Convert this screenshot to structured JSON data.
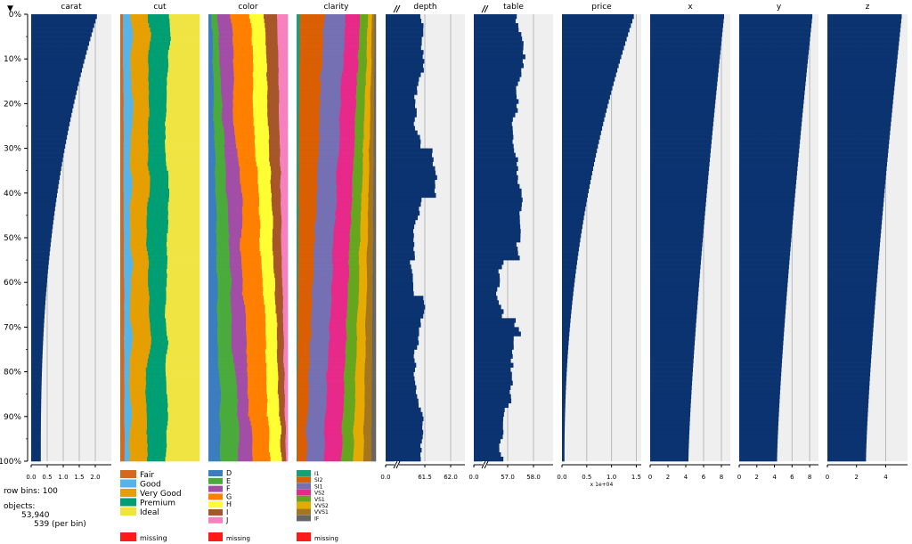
{
  "sort_marker": "▼",
  "y_ticks": [
    "0%",
    "10%",
    "20%",
    "30%",
    "40%",
    "50%",
    "60%",
    "70%",
    "80%",
    "90%",
    "100%"
  ],
  "info": {
    "row_bins_label": "row bins: 100",
    "objects_label": "objects:",
    "objects_count": "53,940",
    "per_bin": "539 (per bin)"
  },
  "colors": {
    "bar": "#0b3370",
    "panel_bg": "#efefef",
    "gridline": "#b8b8b8",
    "missing": "#ff1a1a"
  },
  "chart_data": {
    "type": "table",
    "row_bins": 100,
    "objects": 53940,
    "per_bin": 539,
    "sorted_by": "carat",
    "numeric_columns": [
      {
        "name": "carat",
        "ticks": [
          "0.0",
          "0.5",
          "1.0",
          "1.5",
          "2.0"
        ],
        "tick_values": [
          0,
          0.5,
          1.0,
          1.5,
          2.0
        ],
        "xlim": [
          0,
          2.5
        ],
        "broken_axis": false,
        "bin_means_top_to_bottom": {
          "start": 2.05,
          "decline_to": 0.3,
          "curve": "sorted-descending",
          "noise": 0
        }
      },
      {
        "name": "cut",
        "categories": [
          "Fair",
          "Good",
          "Very Good",
          "Premium",
          "Ideal"
        ],
        "colors": [
          "#d2691e",
          "#56b4e9",
          "#e69f00",
          "#009e73",
          "#f0e442"
        ],
        "missing_label": "missing"
      },
      {
        "name": "color",
        "categories": [
          "D",
          "E",
          "F",
          "G",
          "H",
          "I",
          "J"
        ],
        "colors": [
          "#3b7dbf",
          "#4aaa3c",
          "#a24ea6",
          "#ff7f00",
          "#ffff33",
          "#a65628",
          "#f781bf"
        ],
        "missing_label": "missing"
      },
      {
        "name": "clarity",
        "categories": [
          "I1",
          "SI2",
          "SI1",
          "VS2",
          "VS1",
          "VVS2",
          "VVS1",
          "IF"
        ],
        "colors": [
          "#1b9e77",
          "#d95f02",
          "#7570b3",
          "#e7298a",
          "#66a61e",
          "#e6ab02",
          "#a6761d",
          "#666666"
        ],
        "missing_label": "missing"
      },
      {
        "name": "depth",
        "ticks": [
          "0.0",
          "61.5",
          "62.0"
        ],
        "tick_values": [
          0,
          61.5,
          62.0
        ],
        "broken_axis": true
      },
      {
        "name": "table",
        "ticks": [
          "0.0",
          "57.0",
          "58.0"
        ],
        "tick_values": [
          0,
          57.0,
          58.0
        ],
        "broken_axis": true
      },
      {
        "name": "price",
        "ticks": [
          "0.0",
          "0.5",
          "1.0",
          "1.5"
        ],
        "tick_values": [
          0,
          0.5,
          1.0,
          1.5
        ],
        "xlim": [
          0,
          1.6
        ],
        "scale_note": "x 1e+04"
      },
      {
        "name": "x",
        "ticks": [
          "0",
          "2",
          "4",
          "6",
          "8"
        ],
        "tick_values": [
          0,
          2,
          4,
          6,
          8
        ],
        "xlim": [
          0,
          9
        ]
      },
      {
        "name": "y",
        "ticks": [
          "0",
          "2",
          "4",
          "6",
          "8"
        ],
        "tick_values": [
          0,
          2,
          4,
          6,
          8
        ],
        "xlim": [
          0,
          9
        ]
      },
      {
        "name": "z",
        "ticks": [
          "0",
          "2",
          "4"
        ],
        "tick_values": [
          0,
          2,
          4
        ],
        "xlim": [
          0,
          5.5
        ]
      }
    ]
  }
}
